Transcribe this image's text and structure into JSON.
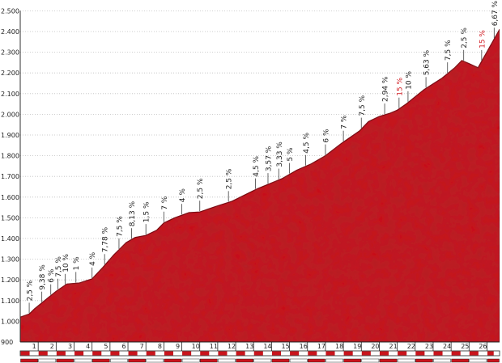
{
  "chart_data": {
    "type": "area",
    "title": "",
    "xlabel": "",
    "ylabel": "",
    "xlim": [
      0,
      26.7
    ],
    "ylim": [
      900,
      2450
    ],
    "grid": true,
    "colors": {
      "fill": "#c9141c",
      "edge": "#6d0c10",
      "axis": "#333333",
      "steep_label": "#d21e25"
    },
    "y_ticks": [
      {
        "v": 900,
        "label": "900"
      },
      {
        "v": 1000,
        "label": "1.000"
      },
      {
        "v": 1100,
        "label": "1.100"
      },
      {
        "v": 1200,
        "label": "1.200"
      },
      {
        "v": 1300,
        "label": "1.300"
      },
      {
        "v": 1400,
        "label": "1.400"
      },
      {
        "v": 1500,
        "label": "1.500"
      },
      {
        "v": 1600,
        "label": "1.600"
      },
      {
        "v": 1700,
        "label": "1.700"
      },
      {
        "v": 1800,
        "label": "1.800"
      },
      {
        "v": 1900,
        "label": "1.900"
      },
      {
        "v": 2000,
        "label": "2.000"
      },
      {
        "v": 2100,
        "label": "2.100"
      },
      {
        "v": 2200,
        "label": "2.200"
      },
      {
        "v": 2300,
        "label": "2.300"
      },
      {
        "v": 2400,
        "label": "2.400"
      },
      {
        "v": 2500,
        "label": "2.500"
      }
    ],
    "x_ticks": [
      {
        "v": 1,
        "label": "1"
      },
      {
        "v": 2,
        "label": "2"
      },
      {
        "v": 3,
        "label": "3"
      },
      {
        "v": 4,
        "label": "4"
      },
      {
        "v": 5,
        "label": "5"
      },
      {
        "v": 6,
        "label": "6"
      },
      {
        "v": 7,
        "label": "7"
      },
      {
        "v": 8,
        "label": "8"
      },
      {
        "v": 9,
        "label": "9"
      },
      {
        "v": 10,
        "label": "10"
      },
      {
        "v": 11,
        "label": "11"
      },
      {
        "v": 12,
        "label": "12"
      },
      {
        "v": 13,
        "label": "13"
      },
      {
        "v": 14,
        "label": "14"
      },
      {
        "v": 15,
        "label": "15"
      },
      {
        "v": 16,
        "label": "16"
      },
      {
        "v": 17,
        "label": "17"
      },
      {
        "v": 18,
        "label": "18"
      },
      {
        "v": 19,
        "label": "19"
      },
      {
        "v": 20,
        "label": "20"
      },
      {
        "v": 21,
        "label": "21"
      },
      {
        "v": 22,
        "label": "22"
      },
      {
        "v": 23,
        "label": "23"
      },
      {
        "v": 24,
        "label": "24"
      },
      {
        "v": 25,
        "label": "25"
      },
      {
        "v": 26,
        "label": "26"
      }
    ],
    "profile": {
      "x": [
        0,
        0.5,
        0.8,
        1.5,
        2.0,
        2.6,
        3.3,
        4.0,
        4.6,
        5.2,
        5.9,
        6.4,
        7.0,
        7.6,
        8.0,
        8.6,
        9.4,
        10.0,
        10.9,
        11.8,
        12.5,
        13.2,
        13.9,
        14.6,
        15.4,
        16.2,
        17.0,
        17.9,
        18.9,
        19.4,
        20.0,
        20.6,
        21.0,
        21.5,
        22.5,
        23.5,
        24.2,
        24.6,
        25.0,
        25.5,
        26.7
      ],
      "y": [
        1020,
        1035,
        1060,
        1110,
        1145,
        1180,
        1185,
        1205,
        1260,
        1320,
        1380,
        1405,
        1415,
        1440,
        1475,
        1500,
        1525,
        1528,
        1555,
        1580,
        1610,
        1640,
        1665,
        1690,
        1730,
        1760,
        1800,
        1860,
        1920,
        1965,
        1990,
        2005,
        2020,
        2050,
        2120,
        2175,
        2225,
        2260,
        2245,
        2225,
        2410
      ]
    },
    "gradient_labels": [
      {
        "x": 0.5,
        "text": "2,5 %",
        "steep": false
      },
      {
        "x": 1.2,
        "text": "9,38 %",
        "steep": false
      },
      {
        "x": 1.7,
        "text": "6 %",
        "steep": false
      },
      {
        "x": 2.1,
        "text": "7,5 %",
        "steep": false
      },
      {
        "x": 2.5,
        "text": "10 %",
        "steep": false
      },
      {
        "x": 3.1,
        "text": "1 %",
        "steep": false
      },
      {
        "x": 4.0,
        "text": "4 %",
        "steep": false
      },
      {
        "x": 4.7,
        "text": "7,78 %",
        "steep": false
      },
      {
        "x": 5.5,
        "text": "7,5 %",
        "steep": false
      },
      {
        "x": 6.2,
        "text": "8,13 %",
        "steep": false
      },
      {
        "x": 7.0,
        "text": "1,5 %",
        "steep": false
      },
      {
        "x": 8.0,
        "text": "7 %",
        "steep": false
      },
      {
        "x": 9.0,
        "text": "4 %",
        "steep": false
      },
      {
        "x": 10.0,
        "text": "2,5 %",
        "steep": false
      },
      {
        "x": 11.6,
        "text": "2,5 %",
        "steep": false
      },
      {
        "x": 13.1,
        "text": "4,5 %",
        "steep": false
      },
      {
        "x": 13.8,
        "text": "3,57 %",
        "steep": false
      },
      {
        "x": 14.4,
        "text": "3,33 %",
        "steep": false
      },
      {
        "x": 15.0,
        "text": "5 %",
        "steep": false
      },
      {
        "x": 15.9,
        "text": "4,5 %",
        "steep": false
      },
      {
        "x": 17.0,
        "text": "6 %",
        "steep": false
      },
      {
        "x": 18.0,
        "text": "7 %",
        "steep": false
      },
      {
        "x": 19.0,
        "text": "7,5 %",
        "steep": false
      },
      {
        "x": 20.3,
        "text": "2,94 %",
        "steep": false
      },
      {
        "x": 21.1,
        "text": "15 %",
        "steep": true
      },
      {
        "x": 21.6,
        "text": "10 %",
        "steep": false
      },
      {
        "x": 22.6,
        "text": "5,63 %",
        "steep": false
      },
      {
        "x": 23.8,
        "text": "7,5 %",
        "steep": false
      },
      {
        "x": 24.7,
        "text": "2,5 %",
        "steep": false
      },
      {
        "x": 25.7,
        "text": "15 %",
        "steep": true
      },
      {
        "x": 26.4,
        "text": "6,67 %",
        "steep": false
      }
    ]
  }
}
